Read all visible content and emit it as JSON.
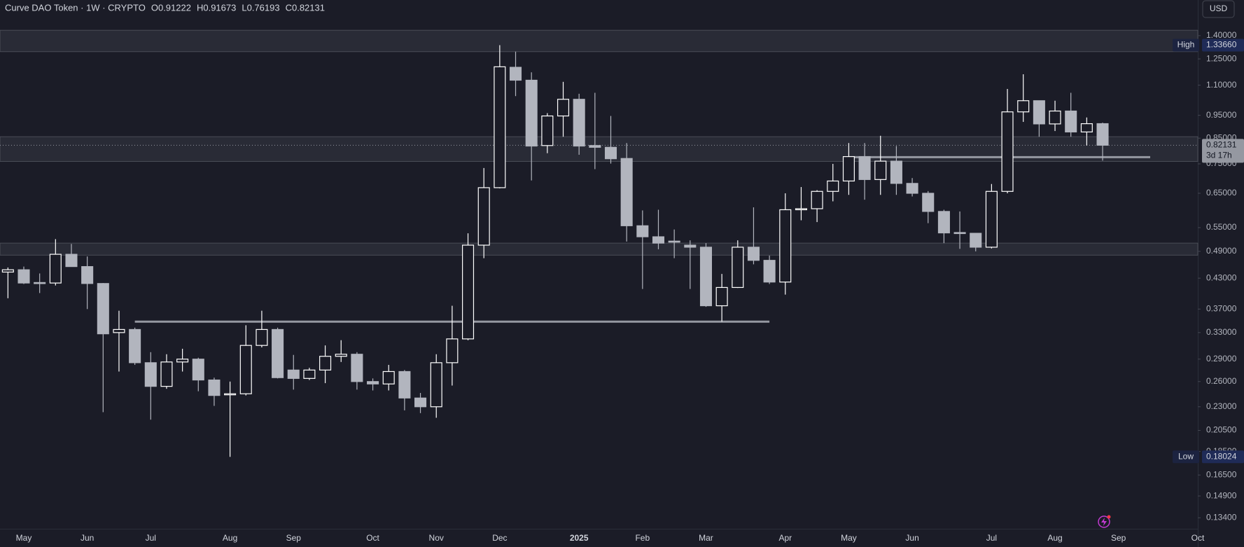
{
  "header": {
    "symbol": "Curve DAO Token · 1W · CRYPTO",
    "ohlc": [
      {
        "label": "O",
        "value": "0.91222"
      },
      {
        "label": "H",
        "value": "0.91673"
      },
      {
        "label": "L",
        "value": "0.76193"
      },
      {
        "label": "C",
        "value": "0.82131"
      }
    ]
  },
  "currency_button": "USD",
  "chart_data": {
    "type": "candlestick",
    "categories": [
      null,
      "May",
      null,
      null,
      null,
      "Jun",
      null,
      null,
      null,
      "Jul",
      null,
      null,
      null,
      null,
      "Aug",
      null,
      null,
      null,
      "Sep",
      null,
      null,
      null,
      null,
      "Oct",
      null,
      null,
      null,
      "Nov",
      null,
      null,
      null,
      "Dec",
      null,
      null,
      null,
      null,
      "2025",
      null,
      null,
      null,
      "Feb",
      null,
      null,
      null,
      "Mar",
      null,
      null,
      null,
      null,
      "Apr",
      null,
      null,
      null,
      "May",
      null,
      null,
      null,
      "Jun",
      null,
      null,
      null,
      null,
      "Jul",
      null,
      null,
      null,
      "Aug",
      null,
      null,
      null,
      "Sep",
      null,
      null,
      null,
      null,
      "Oct"
    ],
    "open": [
      0.443,
      0.448,
      0.421,
      0.42,
      0.483,
      0.455,
      0.419,
      0.33,
      0.335,
      0.285,
      0.254,
      0.286,
      0.29,
      0.262,
      0.244,
      0.245,
      0.31,
      0.335,
      0.275,
      0.264,
      0.275,
      0.294,
      0.297,
      0.26,
      0.257,
      0.273,
      0.24,
      0.23,
      0.285,
      0.32,
      0.505,
      0.668,
      1.2,
      1.127,
      0.82,
      0.947,
      1.027,
      0.82,
      0.813,
      0.77,
      0.555,
      0.526,
      0.515,
      0.505,
      0.5,
      0.376,
      0.411,
      0.5,
      0.469,
      0.422,
      0.6,
      0.603,
      0.656,
      0.69,
      0.777,
      0.695,
      0.76,
      0.682,
      0.65,
      0.595,
      0.537,
      0.535,
      0.5,
      0.656,
      0.966,
      1.02,
      0.911,
      0.97,
      0.876,
      0.91222,
      null,
      null,
      null,
      null,
      null,
      null
    ],
    "high": [
      0.453,
      0.455,
      0.44,
      0.52,
      0.508,
      0.478,
      0.42,
      0.367,
      0.338,
      0.3,
      0.297,
      0.305,
      0.292,
      0.265,
      0.26,
      0.342,
      0.367,
      0.338,
      0.296,
      0.278,
      0.31,
      0.318,
      0.3,
      0.264,
      0.282,
      0.275,
      0.246,
      0.297,
      0.376,
      0.535,
      0.735,
      1.3366,
      1.295,
      1.171,
      0.96,
      1.118,
      1.055,
      1.06,
      0.947,
      0.83,
      0.598,
      0.6,
      0.545,
      0.517,
      0.51,
      0.439,
      0.517,
      0.607,
      0.48,
      0.65,
      0.67,
      0.66,
      0.75,
      0.83,
      0.83,
      0.86,
      0.818,
      0.7,
      0.657,
      0.6,
      0.595,
      0.536,
      0.68,
      1.08,
      1.16,
      1.02,
      1.02,
      1.06,
      0.94,
      0.91673,
      null,
      null,
      null,
      null,
      null,
      null
    ],
    "low": [
      0.39,
      0.418,
      0.4,
      0.415,
      0.455,
      0.37,
      0.224,
      0.273,
      0.282,
      0.216,
      0.251,
      0.273,
      0.248,
      0.231,
      0.18024,
      0.243,
      0.307,
      0.264,
      0.25,
      0.262,
      0.258,
      0.286,
      0.25,
      0.249,
      0.249,
      0.226,
      0.223,
      0.218,
      0.255,
      0.318,
      0.474,
      0.666,
      1.043,
      0.692,
      0.79,
      0.856,
      0.784,
      0.731,
      0.751,
      0.514,
      0.408,
      0.495,
      0.474,
      0.408,
      0.374,
      0.348,
      0.41,
      0.46,
      0.418,
      0.397,
      0.57,
      0.565,
      0.625,
      0.645,
      0.63,
      0.645,
      0.645,
      0.64,
      0.562,
      0.51,
      0.496,
      0.49,
      0.497,
      0.65,
      0.92,
      0.856,
      0.88,
      0.856,
      0.82,
      0.76193,
      null,
      null,
      null,
      null,
      null,
      null
    ],
    "close": [
      0.448,
      0.42,
      0.42,
      0.483,
      0.455,
      0.419,
      0.328,
      0.335,
      0.285,
      0.254,
      0.286,
      0.29,
      0.262,
      0.243,
      0.245,
      0.31,
      0.335,
      0.265,
      0.264,
      0.275,
      0.294,
      0.297,
      0.26,
      0.257,
      0.273,
      0.24,
      0.23,
      0.285,
      0.32,
      0.505,
      0.668,
      1.203,
      1.127,
      0.818,
      0.947,
      1.027,
      0.818,
      0.813,
      0.769,
      0.555,
      0.526,
      0.51,
      0.513,
      0.5,
      0.376,
      0.411,
      0.5,
      0.469,
      0.422,
      0.6,
      0.603,
      0.656,
      0.69,
      0.777,
      0.695,
      0.76,
      0.682,
      0.65,
      0.595,
      0.536,
      0.535,
      0.5,
      0.656,
      0.966,
      1.02,
      0.911,
      0.97,
      0.876,
      0.912,
      0.82131,
      null,
      null,
      null,
      null,
      null,
      null
    ],
    "log_scale": true,
    "ylim": [
      0.127,
      1.665
    ],
    "yticks": [
      {
        "value": 1.4,
        "label": "1.40000"
      },
      {
        "value": 1.25,
        "label": "1.25000"
      },
      {
        "value": 1.1,
        "label": "1.10000"
      },
      {
        "value": 0.95,
        "label": "0.95000"
      },
      {
        "value": 0.85,
        "label": "0.85000"
      },
      {
        "value": 0.75,
        "label": "0.75000"
      },
      {
        "value": 0.65,
        "label": "0.65000"
      },
      {
        "value": 0.55,
        "label": "0.55000"
      },
      {
        "value": 0.49,
        "label": "0.49000"
      },
      {
        "value": 0.43,
        "label": "0.43000"
      },
      {
        "value": 0.37,
        "label": "0.37000"
      },
      {
        "value": 0.33,
        "label": "0.33000"
      },
      {
        "value": 0.29,
        "label": "0.29000"
      },
      {
        "value": 0.26,
        "label": "0.26000"
      },
      {
        "value": 0.23,
        "label": "0.23000"
      },
      {
        "value": 0.205,
        "label": "0.20500"
      },
      {
        "value": 0.185,
        "label": "0.18500"
      },
      {
        "value": 0.165,
        "label": "0.16500"
      },
      {
        "value": 0.149,
        "label": "0.14900"
      },
      {
        "value": 0.134,
        "label": "0.13400"
      }
    ],
    "up_color": "#ffffff",
    "down_color": "#b2b5be",
    "zones": [
      {
        "low": 1.295,
        "high": 1.437
      },
      {
        "low": 0.759,
        "high": 0.856
      },
      {
        "low": 0.481,
        "high": 0.51
      }
    ],
    "levels": [
      {
        "value": 0.348,
        "start": 8,
        "end": 48
      },
      {
        "value": 0.775,
        "start": 53,
        "end": 72
      }
    ],
    "high_marker": {
      "label": "High",
      "value": 1.3366,
      "value_label": "1.33660"
    },
    "low_marker": {
      "label": "Low",
      "value": 0.18024,
      "value_label": "0.18024"
    },
    "last_price": {
      "value": 0.82131,
      "value_label": "0.82131",
      "countdown": "3d 17h"
    }
  }
}
